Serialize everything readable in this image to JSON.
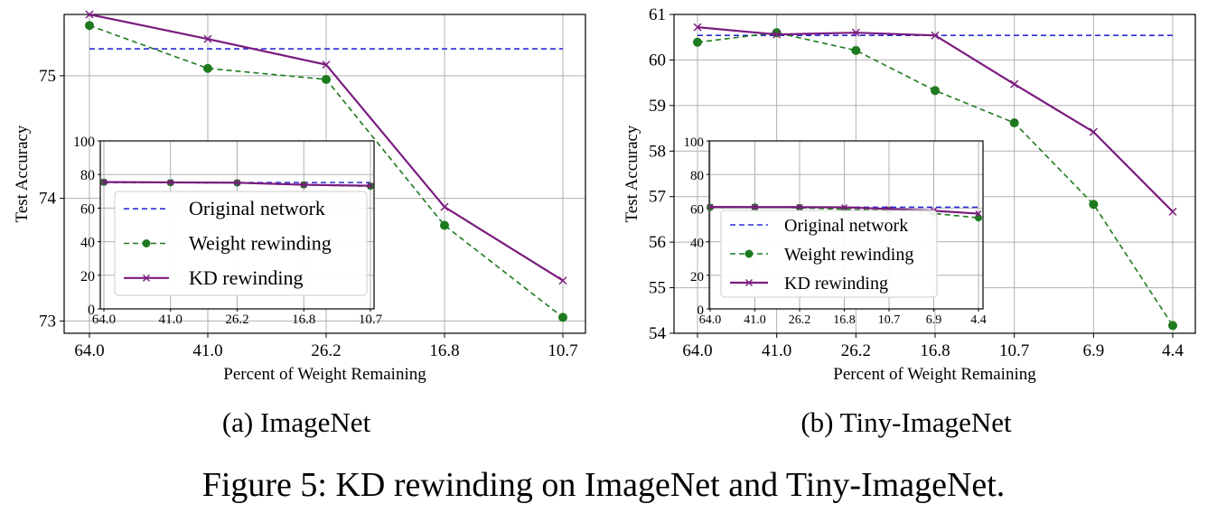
{
  "figure_caption": "Figure 5: KD rewinding on ImageNet and Tiny-ImageNet.",
  "colors": {
    "original": "#2b2bd6",
    "weight_rewinding": "#1e7a1e",
    "kd_rewinding": "#7a1b7e",
    "grid": "#b0b0b0",
    "axis": "#000000"
  },
  "legend_labels": [
    "Original network",
    "Weight rewinding",
    "KD rewinding"
  ],
  "chart_data": [
    {
      "type": "line",
      "subcaption": "(a) ImageNet",
      "xlabel": "Percent of Weight Remaining",
      "ylabel": "Test Accuracy",
      "categories": [
        "64.0",
        "41.0",
        "26.2",
        "16.8",
        "10.7"
      ],
      "ylim": [
        72.9,
        75.5
      ],
      "yticks": [
        73,
        74,
        75
      ],
      "grid": true,
      "series": [
        {
          "name": "Original network",
          "style": "dashed",
          "values": [
            75.22,
            75.22,
            75.22,
            75.22,
            75.22
          ]
        },
        {
          "name": "Weight rewinding",
          "style": "dashed-circle",
          "values": [
            75.41,
            75.06,
            74.97,
            73.78,
            73.03
          ]
        },
        {
          "name": "KD rewinding",
          "style": "solid-x",
          "values": [
            75.5,
            75.3,
            75.09,
            73.93,
            73.33
          ]
        }
      ],
      "inset": {
        "categories": [
          "64.0",
          "41.0",
          "26.2",
          "16.8",
          "10.7"
        ],
        "ylim": [
          0,
          100
        ],
        "yticks": [
          0,
          20,
          40,
          60,
          80,
          100
        ],
        "legend": "lower-left",
        "series": [
          {
            "name": "Original network",
            "values": [
              75.2,
              75.2,
              75.2,
              75.2,
              75.2
            ]
          },
          {
            "name": "Weight rewinding",
            "values": [
              75.4,
              75.1,
              75.0,
              73.8,
              73.0
            ]
          },
          {
            "name": "KD rewinding",
            "values": [
              75.5,
              75.3,
              75.1,
              73.9,
              73.3
            ]
          }
        ]
      }
    },
    {
      "type": "line",
      "subcaption": "(b) Tiny-ImageNet",
      "xlabel": "Percent of Weight Remaining",
      "ylabel": "Test Accuracy",
      "categories": [
        "64.0",
        "41.0",
        "26.2",
        "16.8",
        "10.7",
        "6.9",
        "4.4"
      ],
      "ylim": [
        54,
        61
      ],
      "yticks": [
        54,
        55,
        56,
        57,
        58,
        59,
        60,
        61
      ],
      "grid": true,
      "series": [
        {
          "name": "Original network",
          "style": "dashed",
          "values": [
            60.54,
            60.54,
            60.54,
            60.54,
            60.54,
            60.54,
            60.54
          ]
        },
        {
          "name": "Weight rewinding",
          "style": "dashed-circle",
          "values": [
            60.39,
            60.6,
            60.21,
            59.33,
            58.62,
            56.83,
            54.17
          ]
        },
        {
          "name": "KD rewinding",
          "style": "solid-x",
          "values": [
            60.72,
            60.56,
            60.6,
            60.54,
            59.47,
            58.42,
            56.67
          ]
        }
      ],
      "inset": {
        "categories": [
          "64.0",
          "41.0",
          "26.2",
          "16.8",
          "10.7",
          "6.9",
          "4.4"
        ],
        "ylim": [
          0,
          100
        ],
        "yticks": [
          0,
          20,
          40,
          60,
          80,
          100
        ],
        "legend": "lower-left",
        "series": [
          {
            "name": "Original network",
            "values": [
              60.5,
              60.5,
              60.5,
              60.5,
              60.5,
              60.5,
              60.5
            ]
          },
          {
            "name": "Weight rewinding",
            "values": [
              60.4,
              60.6,
              60.2,
              59.3,
              58.6,
              56.8,
              54.2
            ]
          },
          {
            "name": "KD rewinding",
            "values": [
              60.7,
              60.6,
              60.6,
              60.5,
              59.5,
              58.4,
              56.7
            ]
          }
        ]
      }
    }
  ]
}
